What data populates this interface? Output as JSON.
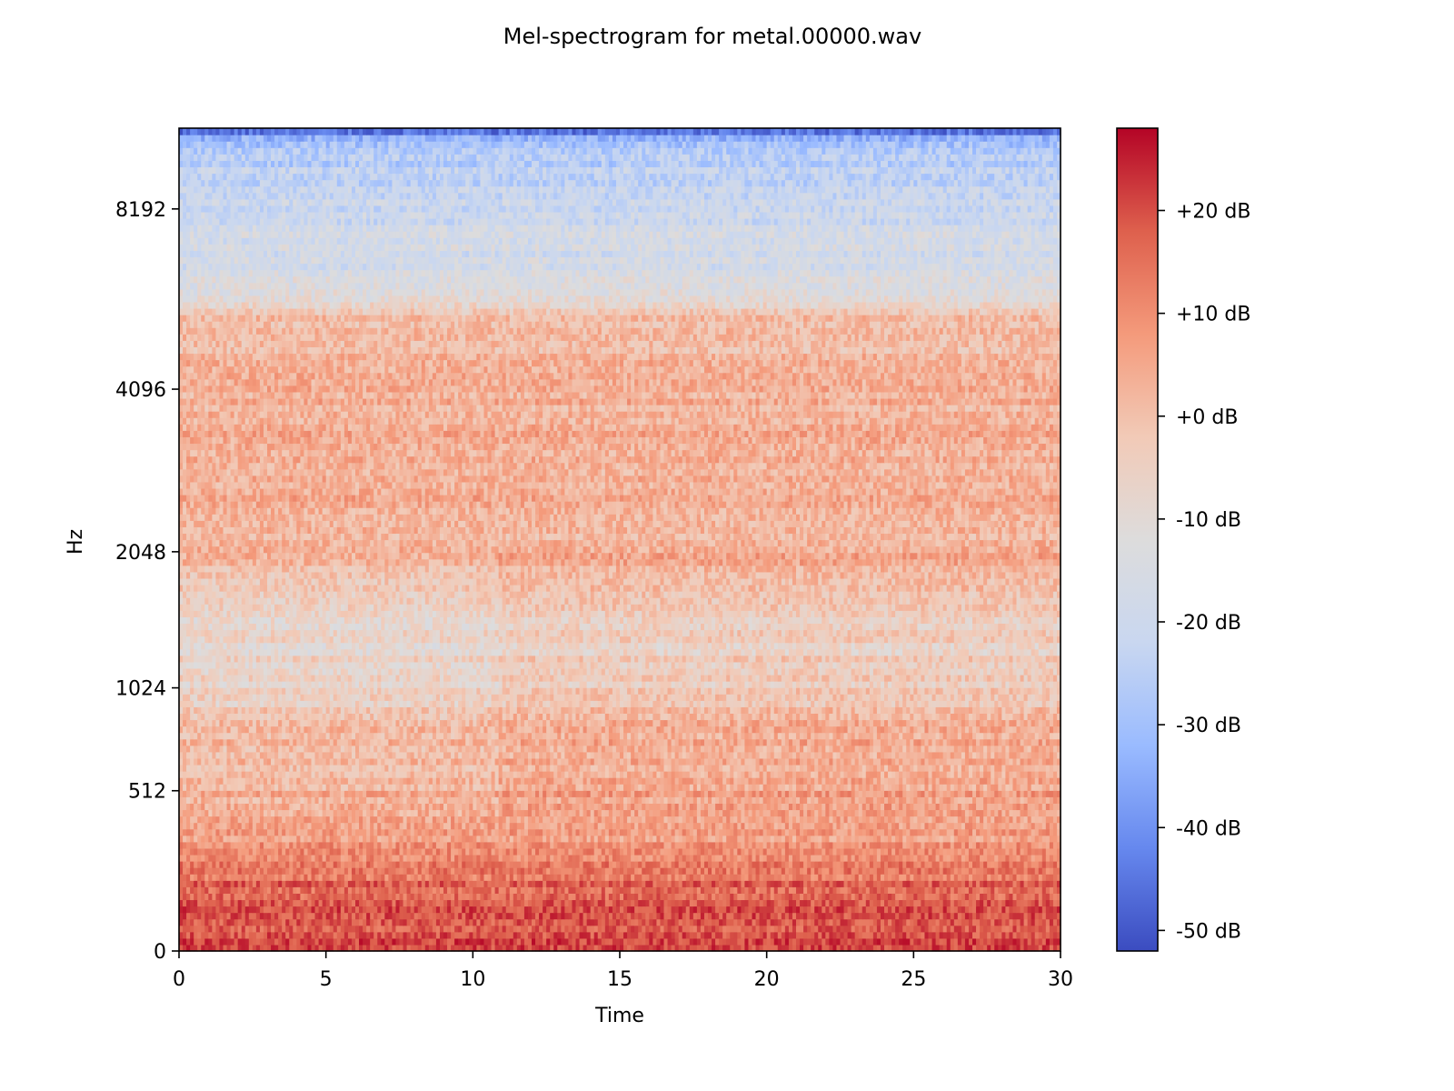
{
  "chart_data": {
    "type": "heatmap",
    "title": "Mel-spectrogram for metal.00000.wav",
    "xlabel": "Time",
    "ylabel": "Hz",
    "x_range": [
      0,
      30
    ],
    "x_ticks": [
      0,
      5,
      10,
      15,
      20,
      25,
      30
    ],
    "x_tick_labels": [
      "0",
      "5",
      "10",
      "15",
      "20",
      "25",
      "30"
    ],
    "y_scale": "mel",
    "y_ticks": [
      0,
      512,
      1024,
      2048,
      4096,
      8192
    ],
    "y_tick_labels": [
      "0",
      "512",
      "1024",
      "2048",
      "4096",
      "8192"
    ],
    "y_range_hz": [
      0,
      11025
    ],
    "colormap": "coolwarm",
    "colorbar": {
      "range_db": [
        -52,
        28
      ],
      "ticks": [
        20,
        10,
        0,
        -10,
        -20,
        -30,
        -40,
        -50
      ],
      "tick_labels": [
        "+20 dB",
        "+10 dB",
        "+0 dB",
        "-10 dB",
        "-20 dB",
        "-30 dB",
        "-40 dB",
        "-50 dB"
      ],
      "colors": [
        "#3b4cc0",
        "#6688ee",
        "#9abbff",
        "#c9d7f0",
        "#dddcdc",
        "#f2cab7",
        "#f49a7b",
        "#de604d",
        "#b40426"
      ]
    },
    "band_profile_db": [
      {
        "hz": 0,
        "db": 20
      },
      {
        "hz": 150,
        "db": 18
      },
      {
        "hz": 300,
        "db": 8
      },
      {
        "hz": 512,
        "db": 3
      },
      {
        "hz": 800,
        "db": 0
      },
      {
        "hz": 1024,
        "db": -6
      },
      {
        "hz": 1400,
        "db": -8
      },
      {
        "hz": 2048,
        "db": 3
      },
      {
        "hz": 3000,
        "db": 4
      },
      {
        "hz": 4096,
        "db": 3
      },
      {
        "hz": 5500,
        "db": 0
      },
      {
        "hz": 6000,
        "db": -14
      },
      {
        "hz": 8192,
        "db": -20
      },
      {
        "hz": 10500,
        "db": -28
      },
      {
        "hz": 11025,
        "db": -50
      }
    ]
  }
}
